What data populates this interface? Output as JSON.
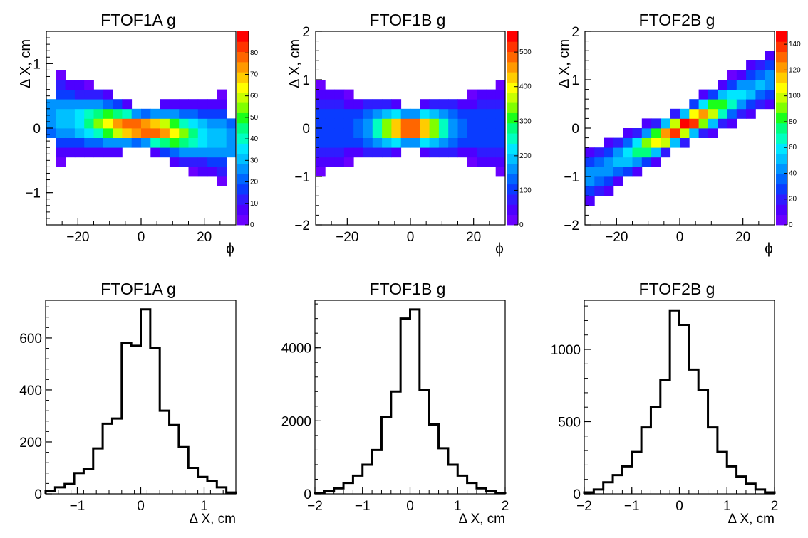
{
  "colors": {
    "palette": [
      "#6a00ff",
      "#4d00ff",
      "#2f1cff",
      "#0a3cff",
      "#0066ff",
      "#0094ff",
      "#00c0ff",
      "#00e6ff",
      "#00ffc0",
      "#00ff80",
      "#1aff1a",
      "#80ff00",
      "#c8ff00",
      "#ffff00",
      "#ffcc00",
      "#ff9900",
      "#ff6600",
      "#ff3300",
      "#ff0000"
    ],
    "line": "#000000",
    "background": "#ffffff"
  },
  "chart_data": [
    {
      "type": "heatmap",
      "title": "FTOF1A g",
      "xlabel": "ϕ",
      "ylabel": "Δ X, cm",
      "xlim": [
        -30,
        30
      ],
      "ylim": [
        -1.5,
        1.5
      ],
      "x_ticks": [
        "−20",
        "0",
        "20"
      ],
      "x_tick_values": [
        -20,
        0,
        20
      ],
      "y_ticks": [
        "−1",
        "0",
        "1"
      ],
      "y_tick_values": [
        -1,
        0,
        1
      ],
      "nx": 20,
      "ny": 20,
      "zmax": 90,
      "z_ticks": [
        "0",
        "10",
        "20",
        "30",
        "40",
        "50",
        "60",
        "70",
        "80"
      ],
      "z_tick_values": [
        0,
        10,
        20,
        30,
        40,
        50,
        60,
        70,
        80
      ],
      "kind": "1a",
      "grid": false
    },
    {
      "type": "heatmap",
      "title": "FTOF1B g",
      "xlabel": "ϕ",
      "ylabel": "Δ X, cm",
      "xlim": [
        -30,
        30
      ],
      "ylim": [
        -2,
        2
      ],
      "x_ticks": [
        "−20",
        "0",
        "20"
      ],
      "x_tick_values": [
        -20,
        0,
        20
      ],
      "y_ticks": [
        "−2",
        "−1",
        "0",
        "1",
        "2"
      ],
      "y_tick_values": [
        -2,
        -1,
        0,
        1,
        2
      ],
      "nx": 20,
      "ny": 20,
      "zmax": 560,
      "z_ticks": [
        "0",
        "100",
        "200",
        "300",
        "400",
        "500"
      ],
      "z_tick_values": [
        0,
        100,
        200,
        300,
        400,
        500
      ],
      "kind": "1b",
      "grid": false
    },
    {
      "type": "heatmap",
      "title": "FTOF2B g",
      "xlabel": "ϕ",
      "ylabel": "Δ X, cm",
      "xlim": [
        -30,
        30
      ],
      "ylim": [
        -2,
        2
      ],
      "x_ticks": [
        "−20",
        "0",
        "20"
      ],
      "x_tick_values": [
        -20,
        0,
        20
      ],
      "y_ticks": [
        "−2",
        "−1",
        "0",
        "1",
        "2"
      ],
      "y_tick_values": [
        -2,
        -1,
        0,
        1,
        2
      ],
      "nx": 20,
      "ny": 20,
      "zmax": 150,
      "z_ticks": [
        "0",
        "20",
        "40",
        "60",
        "80",
        "100",
        "120",
        "140"
      ],
      "z_tick_values": [
        0,
        20,
        40,
        60,
        80,
        100,
        120,
        140
      ],
      "kind": "2b",
      "grid": false
    },
    {
      "type": "line",
      "step": true,
      "title": "FTOF1A g",
      "xlabel": "Δ X, cm",
      "ylabel": "",
      "xlim": [
        -1.5,
        1.5
      ],
      "ylim": [
        0,
        745
      ],
      "x_ticks": [
        "−1",
        "0",
        "1"
      ],
      "x_tick_values": [
        -1,
        0,
        1
      ],
      "y_ticks": [
        "0",
        "200",
        "400",
        "600"
      ],
      "y_tick_values": [
        0,
        200,
        400,
        600
      ],
      "bin_edges": [
        -1.5,
        -1.35,
        -1.2,
        -1.05,
        -0.9,
        -0.75,
        -0.6,
        -0.45,
        -0.3,
        -0.15,
        0,
        0.15,
        0.3,
        0.45,
        0.6,
        0.75,
        0.9,
        1.05,
        1.2,
        1.35,
        1.5
      ],
      "values": [
        10,
        25,
        38,
        80,
        95,
        175,
        270,
        290,
        580,
        570,
        710,
        560,
        320,
        265,
        180,
        100,
        65,
        50,
        25,
        5
      ],
      "grid": false
    },
    {
      "type": "line",
      "step": true,
      "title": "FTOF1B g",
      "xlabel": "Δ X, cm",
      "ylabel": "",
      "xlim": [
        -2,
        2
      ],
      "ylim": [
        0,
        5300
      ],
      "x_ticks": [
        "−2",
        "−1",
        "0",
        "1",
        "2"
      ],
      "x_tick_values": [
        -2,
        -1,
        0,
        1,
        2
      ],
      "y_ticks": [
        "0",
        "2000",
        "4000"
      ],
      "y_tick_values": [
        0,
        2000,
        4000
      ],
      "bin_edges": [
        -2,
        -1.8,
        -1.6,
        -1.4,
        -1.2,
        -1,
        -0.8,
        -0.6,
        -0.4,
        -0.2,
        0,
        0.2,
        0.4,
        0.6,
        0.8,
        1,
        1.2,
        1.4,
        1.6,
        1.8,
        2
      ],
      "values": [
        30,
        80,
        150,
        300,
        500,
        800,
        1200,
        2100,
        2800,
        4800,
        5050,
        2850,
        1900,
        1250,
        800,
        500,
        300,
        150,
        80,
        30
      ],
      "grid": false
    },
    {
      "type": "line",
      "step": true,
      "title": "FTOF2B g",
      "xlabel": "Δ X, cm",
      "ylabel": "",
      "xlim": [
        -2,
        2
      ],
      "ylim": [
        0,
        1340
      ],
      "x_ticks": [
        "−2",
        "−1",
        "0",
        "1",
        "2"
      ],
      "x_tick_values": [
        -2,
        -1,
        0,
        1,
        2
      ],
      "y_ticks": [
        "0",
        "500",
        "1000"
      ],
      "y_tick_values": [
        0,
        500,
        1000
      ],
      "bin_edges": [
        -2,
        -1.8,
        -1.6,
        -1.4,
        -1.2,
        -1,
        -0.8,
        -0.6,
        -0.4,
        -0.2,
        0,
        0.2,
        0.4,
        0.6,
        0.8,
        1,
        1.2,
        1.4,
        1.6,
        1.8,
        2
      ],
      "values": [
        10,
        30,
        80,
        130,
        190,
        290,
        460,
        600,
        790,
        1270,
        1170,
        860,
        720,
        460,
        290,
        190,
        120,
        70,
        30,
        10
      ],
      "grid": false
    }
  ]
}
